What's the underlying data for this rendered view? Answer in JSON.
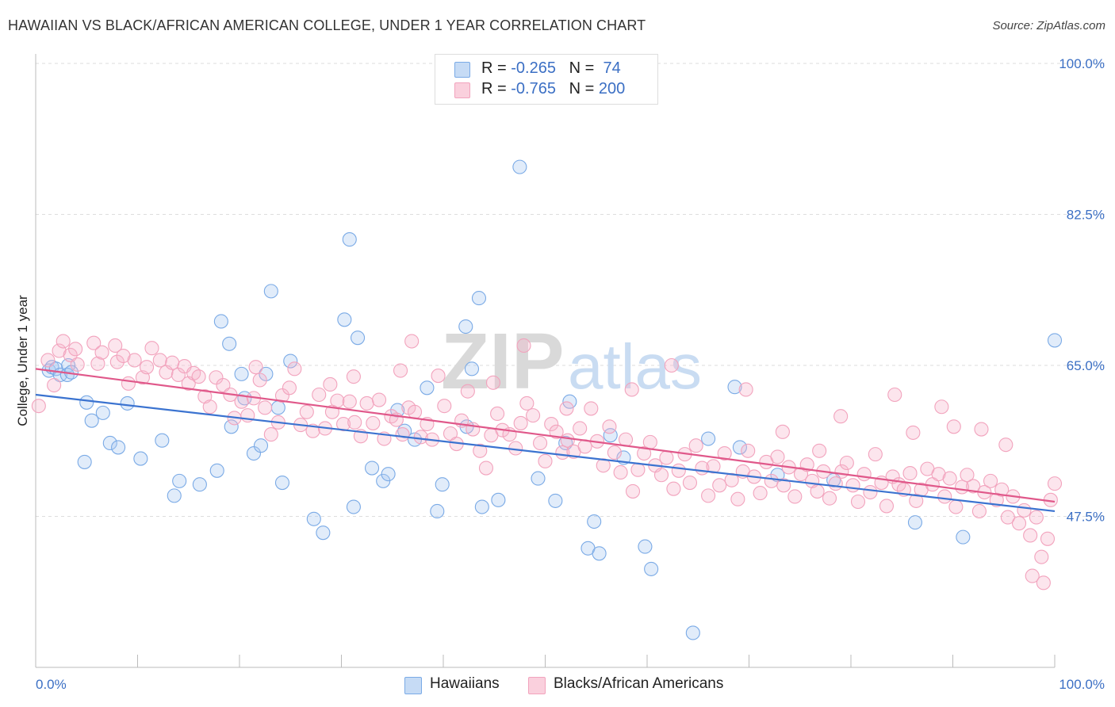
{
  "title": "HAWAIIAN VS BLACK/AFRICAN AMERICAN COLLEGE, UNDER 1 YEAR CORRELATION CHART",
  "source": "Source: ZipAtlas.com",
  "watermark": {
    "zip": "ZIP",
    "atlas": "atlas"
  },
  "legend": {
    "rows": [
      {
        "r_label": "R = ",
        "r_value": "-0.265",
        "n_label": "N = ",
        "n_value": " 74",
        "color": "#a8c8f0"
      },
      {
        "r_label": "R = ",
        "r_value": "-0.765",
        "n_label": "N = ",
        "n_value": "200",
        "color": "#f5b5ca"
      }
    ]
  },
  "bottom_legend": [
    {
      "label": "Hawaiians",
      "color": "#a8c8f0"
    },
    {
      "label": "Blacks/African Americans",
      "color": "#f5b5ca"
    }
  ],
  "chart_data": {
    "type": "scatter",
    "xlabel": "",
    "ylabel": "College, Under 1 year",
    "xlim": [
      0,
      100
    ],
    "ylim": [
      30,
      100
    ],
    "x_tick_labels": [
      "0.0%",
      "100.0%"
    ],
    "y_ticks": [
      47.5,
      65.0,
      82.5,
      100.0
    ],
    "y_tick_labels": [
      "47.5%",
      "65.0%",
      "82.5%",
      "100.0%"
    ],
    "grid": "horizontal dashed",
    "series": [
      {
        "name": "Hawaiians",
        "color": "#7aaae6",
        "line_color": "#3b73d0",
        "trend": {
          "x": [
            0,
            100
          ],
          "y": [
            61.6,
            48.1
          ]
        },
        "points": [
          [
            1.3,
            64.4
          ],
          [
            1.6,
            64.8
          ],
          [
            2.0,
            64.6
          ],
          [
            2.4,
            63.9
          ],
          [
            3.2,
            65.0
          ],
          [
            3.1,
            63.9
          ],
          [
            3.5,
            64.2
          ],
          [
            5.0,
            60.7
          ],
          [
            5.5,
            58.6
          ],
          [
            6.6,
            59.5
          ],
          [
            7.3,
            56.0
          ],
          [
            8.1,
            55.5
          ],
          [
            4.8,
            53.8
          ],
          [
            9.0,
            60.6
          ],
          [
            10.3,
            54.2
          ],
          [
            12.4,
            56.3
          ],
          [
            14.1,
            51.6
          ],
          [
            16.1,
            51.2
          ],
          [
            13.6,
            49.9
          ],
          [
            17.8,
            52.8
          ],
          [
            18.2,
            70.1
          ],
          [
            19.0,
            67.5
          ],
          [
            20.2,
            64.0
          ],
          [
            20.5,
            61.2
          ],
          [
            19.2,
            57.9
          ],
          [
            21.4,
            54.8
          ],
          [
            22.1,
            55.7
          ],
          [
            24.2,
            51.4
          ],
          [
            25.0,
            65.5
          ],
          [
            23.1,
            73.6
          ],
          [
            22.6,
            64.0
          ],
          [
            23.8,
            60.1
          ],
          [
            27.3,
            47.2
          ],
          [
            30.3,
            70.3
          ],
          [
            28.2,
            45.6
          ],
          [
            31.2,
            48.6
          ],
          [
            33.0,
            53.1
          ],
          [
            30.8,
            79.6
          ],
          [
            31.6,
            68.2
          ],
          [
            34.1,
            51.6
          ],
          [
            34.6,
            52.4
          ],
          [
            35.5,
            59.8
          ],
          [
            36.2,
            57.4
          ],
          [
            37.2,
            56.4
          ],
          [
            38.4,
            62.4
          ],
          [
            39.9,
            51.2
          ],
          [
            39.4,
            48.1
          ],
          [
            42.3,
            57.9
          ],
          [
            42.8,
            64.6
          ],
          [
            42.2,
            69.5
          ],
          [
            43.5,
            72.8
          ],
          [
            43.8,
            48.6
          ],
          [
            45.4,
            49.4
          ],
          [
            47.5,
            88.0
          ],
          [
            49.3,
            51.9
          ],
          [
            51.0,
            49.3
          ],
          [
            52.0,
            56.0
          ],
          [
            52.4,
            60.8
          ],
          [
            54.2,
            43.8
          ],
          [
            54.8,
            46.9
          ],
          [
            55.3,
            43.2
          ],
          [
            56.4,
            56.9
          ],
          [
            57.7,
            54.3
          ],
          [
            59.8,
            44.0
          ],
          [
            60.4,
            41.4
          ],
          [
            64.5,
            34.0
          ],
          [
            66.0,
            56.5
          ],
          [
            68.6,
            62.5
          ],
          [
            69.1,
            55.5
          ],
          [
            72.8,
            52.3
          ],
          [
            78.3,
            51.7
          ],
          [
            86.3,
            46.8
          ],
          [
            91.0,
            45.1
          ],
          [
            100.0,
            67.9
          ]
        ]
      },
      {
        "name": "Blacks/African Americans",
        "color": "#f2a3bd",
        "line_color": "#e0588a",
        "trend": {
          "x": [
            0,
            100
          ],
          "y": [
            64.6,
            49.2
          ]
        },
        "points": [
          [
            0.3,
            60.3
          ],
          [
            1.2,
            65.6
          ],
          [
            1.8,
            62.7
          ],
          [
            2.3,
            66.7
          ],
          [
            2.7,
            67.8
          ],
          [
            3.4,
            66.2
          ],
          [
            3.9,
            66.9
          ],
          [
            4.1,
            65.1
          ],
          [
            5.7,
            67.6
          ],
          [
            6.1,
            65.2
          ],
          [
            6.5,
            66.5
          ],
          [
            7.8,
            67.3
          ],
          [
            8.0,
            65.4
          ],
          [
            8.6,
            66.1
          ],
          [
            9.1,
            62.9
          ],
          [
            9.7,
            65.6
          ],
          [
            10.5,
            63.6
          ],
          [
            10.9,
            64.8
          ],
          [
            11.4,
            67.0
          ],
          [
            12.2,
            65.6
          ],
          [
            12.8,
            64.2
          ],
          [
            13.4,
            65.3
          ],
          [
            14.0,
            63.9
          ],
          [
            14.6,
            64.9
          ],
          [
            15.0,
            62.9
          ],
          [
            15.5,
            64.1
          ],
          [
            16.0,
            63.7
          ],
          [
            16.6,
            61.4
          ],
          [
            17.1,
            60.2
          ],
          [
            17.7,
            63.6
          ],
          [
            18.4,
            62.7
          ],
          [
            19.1,
            61.6
          ],
          [
            19.5,
            58.9
          ],
          [
            20.2,
            60.8
          ],
          [
            20.8,
            59.2
          ],
          [
            21.4,
            61.2
          ],
          [
            22.0,
            63.3
          ],
          [
            22.5,
            60.1
          ],
          [
            23.1,
            57.0
          ],
          [
            23.8,
            58.4
          ],
          [
            24.2,
            61.5
          ],
          [
            24.9,
            62.4
          ],
          [
            25.4,
            64.6
          ],
          [
            26.0,
            58.1
          ],
          [
            26.6,
            59.6
          ],
          [
            27.2,
            57.4
          ],
          [
            27.8,
            61.6
          ],
          [
            28.4,
            57.7
          ],
          [
            29.1,
            59.6
          ],
          [
            29.6,
            60.9
          ],
          [
            30.2,
            58.2
          ],
          [
            30.8,
            60.8
          ],
          [
            31.3,
            58.4
          ],
          [
            31.9,
            56.8
          ],
          [
            32.5,
            60.6
          ],
          [
            33.1,
            58.3
          ],
          [
            33.7,
            61.0
          ],
          [
            34.2,
            56.5
          ],
          [
            34.9,
            59.1
          ],
          [
            35.4,
            58.7
          ],
          [
            36.0,
            57.0
          ],
          [
            36.6,
            60.1
          ],
          [
            37.2,
            59.6
          ],
          [
            37.8,
            56.7
          ],
          [
            38.4,
            58.2
          ],
          [
            38.9,
            56.4
          ],
          [
            39.5,
            63.8
          ],
          [
            40.1,
            60.3
          ],
          [
            40.7,
            57.1
          ],
          [
            41.3,
            55.9
          ],
          [
            41.8,
            58.6
          ],
          [
            42.4,
            62.0
          ],
          [
            42.9,
            57.6
          ],
          [
            43.6,
            55.1
          ],
          [
            44.2,
            53.1
          ],
          [
            44.7,
            56.9
          ],
          [
            45.3,
            59.4
          ],
          [
            45.8,
            57.5
          ],
          [
            46.5,
            57.0
          ],
          [
            47.1,
            55.4
          ],
          [
            47.6,
            58.3
          ],
          [
            48.2,
            60.6
          ],
          [
            48.8,
            59.2
          ],
          [
            49.5,
            56.0
          ],
          [
            50.0,
            53.9
          ],
          [
            50.6,
            58.2
          ],
          [
            51.1,
            57.3
          ],
          [
            51.7,
            54.9
          ],
          [
            52.2,
            56.3
          ],
          [
            52.8,
            55.0
          ],
          [
            53.4,
            57.7
          ],
          [
            53.9,
            55.6
          ],
          [
            54.5,
            60.0
          ],
          [
            55.1,
            56.2
          ],
          [
            55.7,
            53.4
          ],
          [
            56.3,
            57.9
          ],
          [
            56.8,
            54.9
          ],
          [
            57.4,
            52.6
          ],
          [
            57.9,
            56.4
          ],
          [
            58.6,
            50.4
          ],
          [
            59.1,
            52.9
          ],
          [
            59.7,
            54.8
          ],
          [
            60.3,
            56.1
          ],
          [
            60.8,
            53.4
          ],
          [
            61.4,
            52.3
          ],
          [
            61.9,
            54.3
          ],
          [
            62.6,
            50.7
          ],
          [
            63.1,
            52.8
          ],
          [
            63.7,
            54.7
          ],
          [
            64.2,
            51.4
          ],
          [
            64.8,
            55.7
          ],
          [
            65.4,
            53.1
          ],
          [
            66.0,
            49.9
          ],
          [
            66.5,
            53.3
          ],
          [
            67.1,
            51.1
          ],
          [
            67.6,
            54.8
          ],
          [
            68.3,
            51.7
          ],
          [
            68.9,
            49.5
          ],
          [
            69.4,
            52.7
          ],
          [
            69.9,
            55.1
          ],
          [
            70.5,
            52.1
          ],
          [
            71.1,
            50.2
          ],
          [
            71.7,
            53.8
          ],
          [
            72.2,
            51.6
          ],
          [
            72.8,
            54.4
          ],
          [
            73.4,
            51.1
          ],
          [
            73.9,
            53.2
          ],
          [
            74.5,
            49.8
          ],
          [
            75.1,
            52.4
          ],
          [
            75.7,
            53.5
          ],
          [
            76.2,
            51.6
          ],
          [
            76.7,
            50.4
          ],
          [
            77.3,
            52.7
          ],
          [
            77.9,
            49.6
          ],
          [
            78.5,
            51.3
          ],
          [
            79.1,
            52.7
          ],
          [
            79.6,
            53.7
          ],
          [
            80.2,
            51.1
          ],
          [
            80.7,
            49.2
          ],
          [
            81.3,
            52.4
          ],
          [
            81.9,
            50.3
          ],
          [
            82.4,
            54.7
          ],
          [
            83.0,
            51.4
          ],
          [
            83.5,
            48.7
          ],
          [
            84.1,
            52.1
          ],
          [
            84.7,
            51.2
          ],
          [
            85.2,
            50.6
          ],
          [
            85.8,
            52.5
          ],
          [
            86.4,
            49.3
          ],
          [
            86.9,
            50.6
          ],
          [
            87.5,
            53.0
          ],
          [
            88.0,
            51.2
          ],
          [
            88.6,
            52.4
          ],
          [
            89.2,
            49.8
          ],
          [
            89.7,
            51.9
          ],
          [
            90.3,
            48.6
          ],
          [
            90.9,
            50.9
          ],
          [
            91.4,
            52.3
          ],
          [
            92.0,
            51.0
          ],
          [
            92.6,
            48.1
          ],
          [
            93.1,
            50.3
          ],
          [
            93.7,
            51.6
          ],
          [
            94.3,
            49.4
          ],
          [
            94.8,
            50.6
          ],
          [
            95.4,
            47.4
          ],
          [
            95.9,
            49.8
          ],
          [
            96.5,
            46.7
          ],
          [
            97.0,
            48.2
          ],
          [
            97.6,
            45.3
          ],
          [
            98.2,
            47.4
          ],
          [
            98.7,
            42.8
          ],
          [
            99.3,
            44.9
          ],
          [
            99.6,
            49.4
          ],
          [
            100.0,
            51.3
          ],
          [
            97.8,
            40.6
          ],
          [
            98.9,
            39.8
          ],
          [
            84.3,
            61.6
          ],
          [
            88.9,
            60.2
          ],
          [
            76.9,
            55.1
          ],
          [
            69.7,
            62.2
          ],
          [
            36.9,
            67.8
          ],
          [
            47.9,
            67.3
          ],
          [
            31.2,
            63.7
          ],
          [
            21.6,
            64.8
          ],
          [
            92.8,
            57.6
          ],
          [
            62.4,
            65.0
          ],
          [
            44.9,
            63.0
          ],
          [
            52.1,
            60.0
          ],
          [
            73.3,
            57.3
          ],
          [
            86.1,
            57.2
          ],
          [
            58.5,
            62.2
          ],
          [
            79.0,
            59.1
          ],
          [
            95.2,
            55.8
          ],
          [
            28.9,
            62.8
          ],
          [
            35.8,
            64.4
          ],
          [
            90.1,
            57.9
          ]
        ]
      }
    ]
  }
}
